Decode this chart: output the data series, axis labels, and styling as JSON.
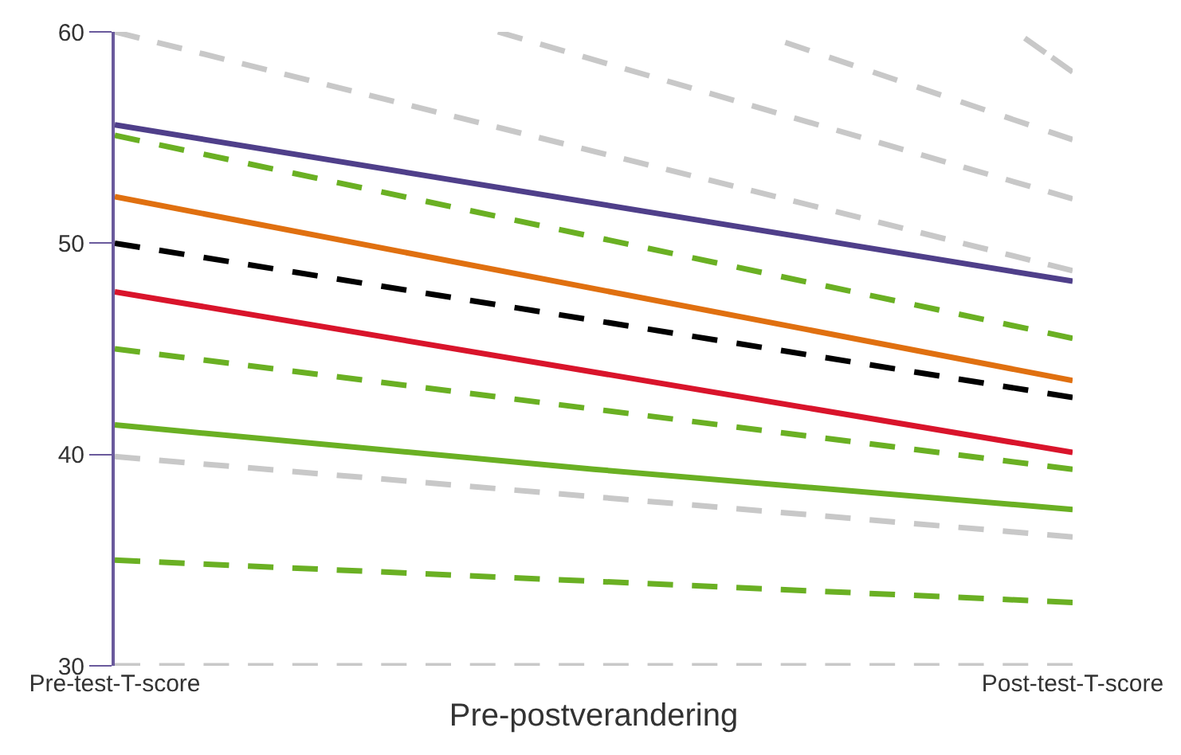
{
  "chart_data": {
    "type": "line",
    "xlabel": "Pre-postverandering",
    "categories": [
      "Pre-test-T-score",
      null,
      null,
      null,
      null,
      null,
      null,
      null,
      null,
      null,
      null,
      null,
      null,
      null,
      null,
      null,
      null,
      null,
      null,
      null,
      "Post-test-T-score"
    ],
    "ylim": [
      30,
      60
    ],
    "yticks": [
      30,
      40,
      50,
      60
    ],
    "grid": false,
    "series": [
      {
        "color": "#c8c8c8",
        "line_style": "dashed",
        "values": [
          60,
          null,
          null,
          null,
          null,
          null,
          null,
          null,
          null,
          null,
          null,
          null,
          null,
          null,
          null,
          null,
          null,
          null,
          null,
          null,
          48.7
        ]
      },
      {
        "color": "#c8c8c8",
        "line_style": "dashed",
        "values": [
          null,
          null,
          null,
          null,
          null,
          null,
          null,
          null,
          60,
          null,
          null,
          null,
          null,
          null,
          null,
          null,
          null,
          null,
          null,
          null,
          52.1
        ]
      },
      {
        "color": "#c8c8c8",
        "line_style": "dashed",
        "values": [
          null,
          null,
          null,
          null,
          null,
          null,
          null,
          null,
          null,
          null,
          null,
          null,
          null,
          null,
          59.5,
          null,
          null,
          null,
          null,
          null,
          54.9
        ]
      },
      {
        "color": "#c8c8c8",
        "line_style": "dashed",
        "values": [
          null,
          null,
          null,
          null,
          null,
          null,
          null,
          null,
          null,
          null,
          null,
          null,
          null,
          null,
          null,
          null,
          null,
          null,
          null,
          59.7,
          58.1
        ]
      },
      {
        "color": "#c8c8c8",
        "line_style": "dashed",
        "values": [
          39.9,
          null,
          null,
          null,
          null,
          null,
          null,
          null,
          null,
          null,
          null,
          null,
          null,
          null,
          null,
          null,
          null,
          null,
          null,
          null,
          36.1
        ]
      },
      {
        "color": "#c8c8c8",
        "line_style": "dashed",
        "values": [
          30,
          null,
          null,
          null,
          null,
          null,
          null,
          null,
          null,
          null,
          null,
          null,
          null,
          null,
          null,
          null,
          null,
          null,
          null,
          null,
          30
        ]
      },
      {
        "color": "#6ab023",
        "line_style": "dashed",
        "values": [
          55.1,
          null,
          null,
          null,
          null,
          null,
          null,
          null,
          null,
          null,
          null,
          null,
          null,
          null,
          null,
          null,
          null,
          null,
          null,
          null,
          45.5
        ]
      },
      {
        "color": "#6ab023",
        "line_style": "dashed",
        "values": [
          45,
          null,
          null,
          null,
          null,
          null,
          null,
          null,
          null,
          null,
          null,
          null,
          null,
          null,
          null,
          null,
          null,
          null,
          null,
          null,
          39.3
        ]
      },
      {
        "color": "#6ab023",
        "line_style": "dashed",
        "values": [
          35,
          null,
          null,
          null,
          null,
          null,
          null,
          null,
          null,
          null,
          null,
          null,
          null,
          null,
          null,
          null,
          null,
          null,
          null,
          null,
          33
        ]
      },
      {
        "color": "#4f3f8a",
        "line_style": "solid",
        "values": [
          55.6,
          null,
          null,
          null,
          null,
          null,
          null,
          null,
          null,
          null,
          null,
          null,
          null,
          null,
          null,
          null,
          null,
          null,
          null,
          null,
          48.2
        ]
      },
      {
        "color": "#e07010",
        "line_style": "solid",
        "values": [
          52.2,
          null,
          null,
          null,
          null,
          null,
          null,
          null,
          null,
          null,
          null,
          null,
          null,
          null,
          null,
          null,
          null,
          null,
          null,
          null,
          43.5
        ]
      },
      {
        "color": "#000000",
        "line_style": "dashed",
        "values": [
          50,
          null,
          null,
          null,
          null,
          null,
          null,
          null,
          null,
          null,
          null,
          null,
          null,
          null,
          null,
          null,
          null,
          null,
          null,
          null,
          42.7
        ]
      },
      {
        "color": "#d9142b",
        "line_style": "solid",
        "values": [
          47.7,
          null,
          null,
          null,
          null,
          null,
          null,
          null,
          null,
          null,
          null,
          null,
          null,
          null,
          null,
          null,
          null,
          null,
          null,
          null,
          40.1
        ]
      },
      {
        "color": "#6ab023",
        "line_style": "solid",
        "values": [
          41.4,
          null,
          null,
          null,
          null,
          null,
          null,
          null,
          null,
          null,
          39.3,
          null,
          null,
          null,
          null,
          null,
          null,
          null,
          null,
          null,
          37.4
        ]
      }
    ]
  }
}
